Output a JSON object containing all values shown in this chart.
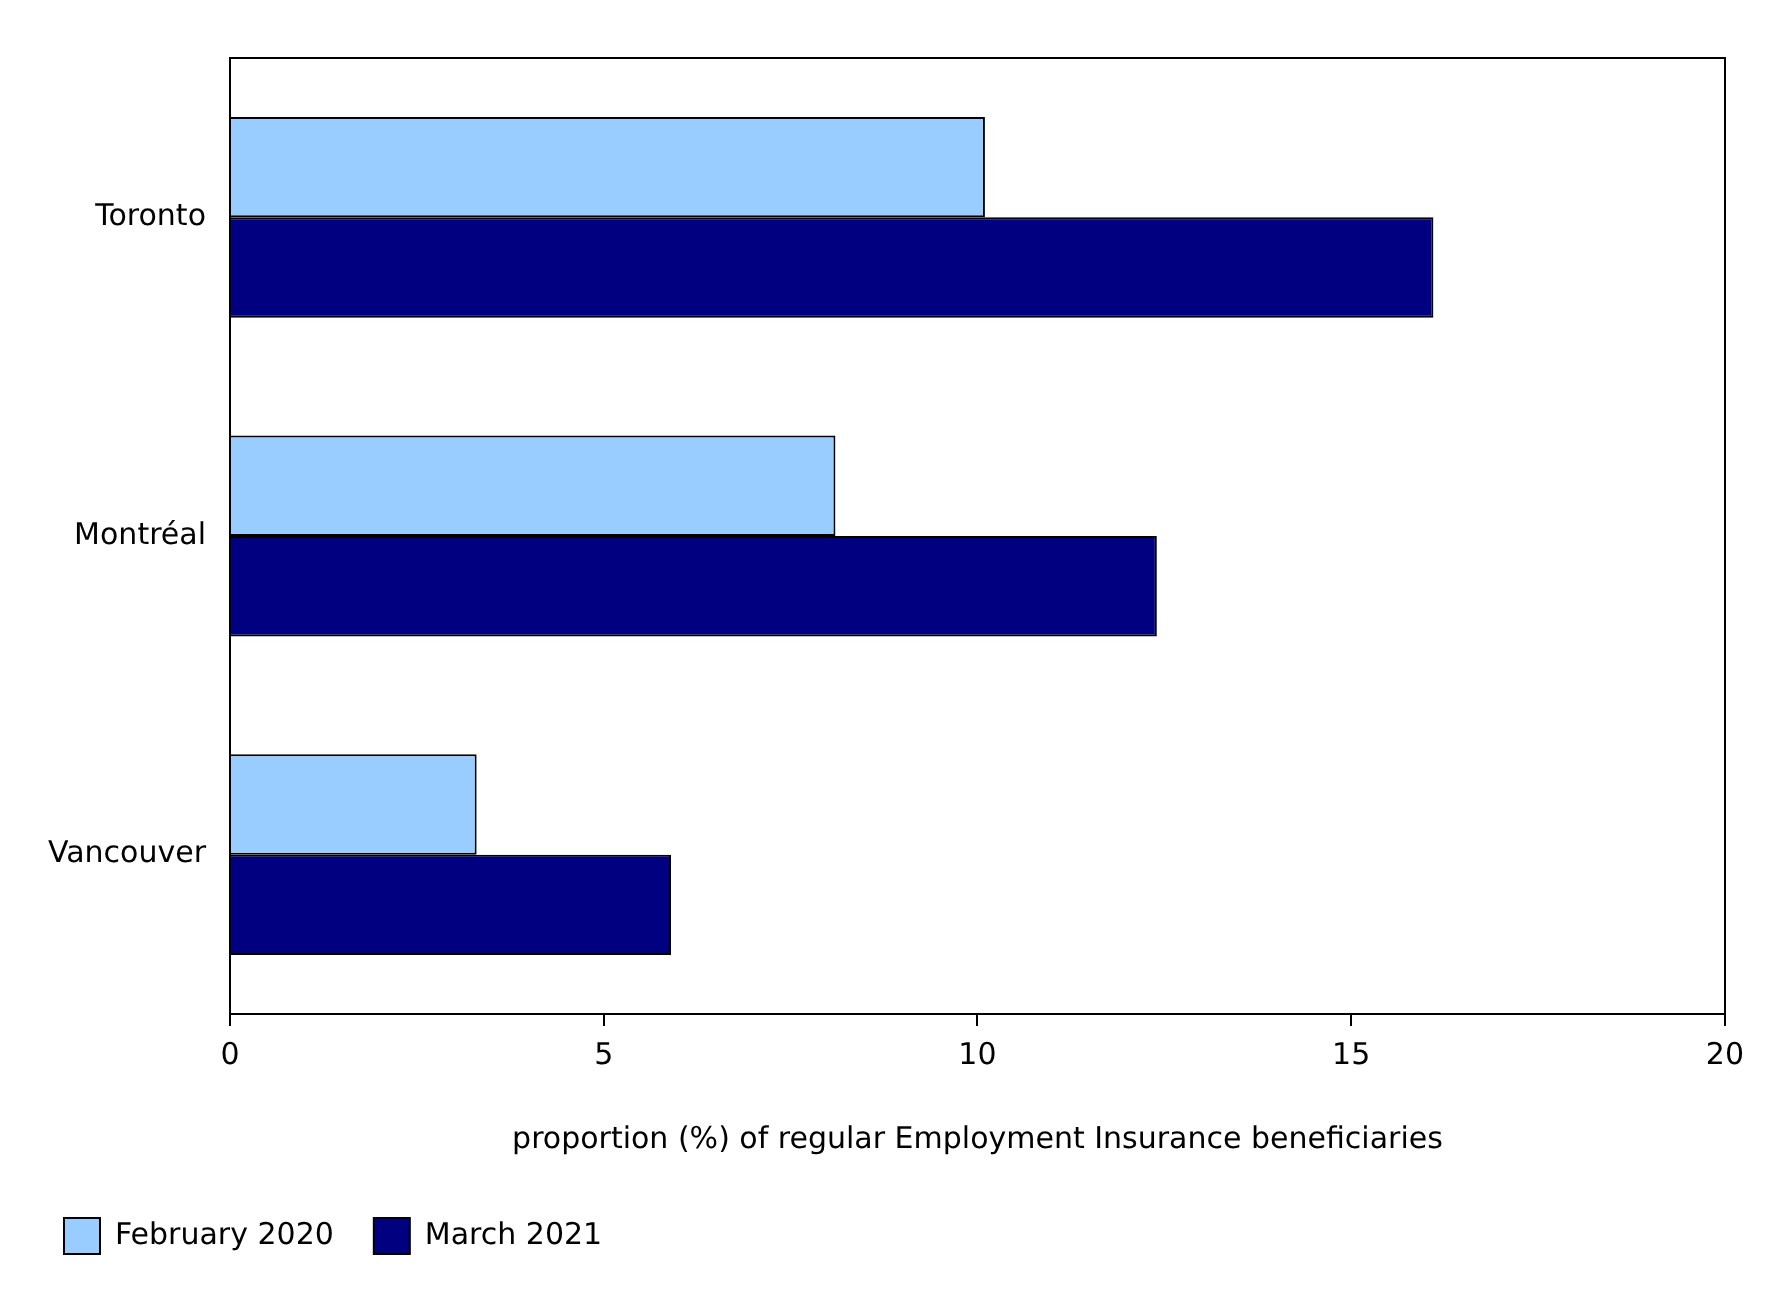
{
  "chart_data": {
    "type": "bar",
    "orientation": "horizontal",
    "xlabel": "proportion (%) of regular Employment Insurance beneficiaries",
    "categories": [
      "Toronto",
      "Montréal",
      "Vancouver"
    ],
    "series": [
      {
        "name": "February 2020",
        "color": "#99ccff",
        "values": [
          10.1,
          8.1,
          3.3
        ]
      },
      {
        "name": "March 2021",
        "color": "#000080",
        "values": [
          16.1,
          12.4,
          5.9
        ]
      }
    ],
    "xlim": [
      0,
      20
    ],
    "xticks": [
      0,
      5,
      10,
      15,
      20
    ],
    "grid": false,
    "legend": "bottom left"
  }
}
